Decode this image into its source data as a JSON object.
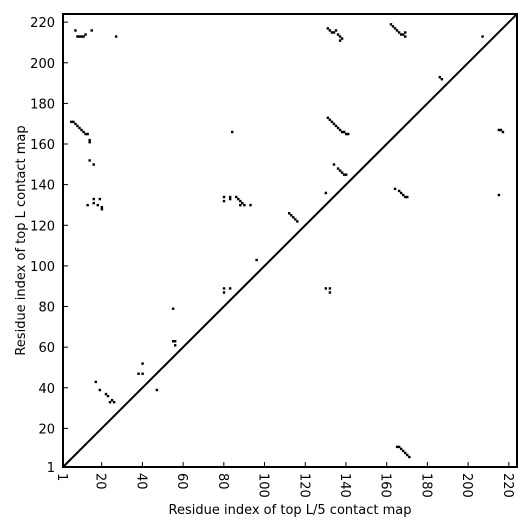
{
  "chart_data": {
    "type": "scatter",
    "subtype": "contact-map",
    "title": "",
    "xlabel": "Residue index of top L/5 contact map",
    "ylabel": "Residue index of top L contact map",
    "xlim": [
      1,
      224
    ],
    "ylim": [
      1,
      224
    ],
    "x_ticks": [
      1,
      20,
      40,
      60,
      80,
      100,
      120,
      140,
      160,
      180,
      200,
      220
    ],
    "y_ticks": [
      1,
      20,
      40,
      60,
      80,
      100,
      120,
      140,
      160,
      180,
      200,
      220
    ],
    "diagonal": true,
    "grid": false,
    "legend": "none",
    "marker_color": "#000000",
    "upper_triangle_top_L5": [
      [
        7,
        216
      ],
      [
        8,
        213
      ],
      [
        9,
        213
      ],
      [
        10,
        213
      ],
      [
        11,
        213
      ],
      [
        12,
        214
      ],
      [
        15,
        216
      ],
      [
        27,
        213
      ],
      [
        131,
        217
      ],
      [
        132,
        216
      ],
      [
        133,
        215
      ],
      [
        134,
        215
      ],
      [
        135,
        216
      ],
      [
        136,
        214
      ],
      [
        137,
        213
      ],
      [
        137,
        211
      ],
      [
        138,
        212
      ],
      [
        162,
        219
      ],
      [
        163,
        218
      ],
      [
        164,
        217
      ],
      [
        165,
        216
      ],
      [
        166,
        215
      ],
      [
        167,
        214
      ],
      [
        168,
        214
      ],
      [
        169,
        213
      ],
      [
        169,
        215
      ],
      [
        186,
        193
      ],
      [
        187,
        192
      ],
      [
        207,
        213
      ]
    ],
    "lower_triangle_top_L": [
      [
        5,
        171
      ],
      [
        6,
        171
      ],
      [
        7,
        170
      ],
      [
        8,
        169
      ],
      [
        9,
        168
      ],
      [
        10,
        167
      ],
      [
        11,
        166
      ],
      [
        12,
        165
      ],
      [
        13,
        165
      ],
      [
        14,
        162
      ],
      [
        14,
        161
      ],
      [
        14,
        152
      ],
      [
        16,
        150
      ],
      [
        13,
        130
      ],
      [
        16,
        131
      ],
      [
        16,
        133
      ],
      [
        18,
        130
      ],
      [
        19,
        133
      ],
      [
        20,
        129
      ],
      [
        20,
        128
      ],
      [
        17,
        43
      ],
      [
        19,
        39
      ],
      [
        22,
        37
      ],
      [
        23,
        36
      ],
      [
        24,
        33
      ],
      [
        25,
        34
      ],
      [
        26,
        33
      ],
      [
        38,
        47
      ],
      [
        40,
        47
      ],
      [
        40,
        52
      ],
      [
        47,
        39
      ],
      [
        55,
        79
      ],
      [
        55,
        63
      ],
      [
        56,
        63
      ],
      [
        56,
        61
      ],
      [
        80,
        134
      ],
      [
        80,
        132
      ],
      [
        83,
        133
      ],
      [
        83,
        134
      ],
      [
        86,
        134
      ],
      [
        87,
        133
      ],
      [
        88,
        132
      ],
      [
        89,
        131
      ],
      [
        90,
        130
      ],
      [
        88,
        130
      ],
      [
        93,
        130
      ],
      [
        80,
        89
      ],
      [
        80,
        87
      ],
      [
        83,
        89
      ],
      [
        96,
        103
      ],
      [
        112,
        126
      ],
      [
        113,
        125
      ],
      [
        114,
        124
      ],
      [
        115,
        123
      ],
      [
        116,
        122
      ],
      [
        130,
        136
      ],
      [
        130,
        89
      ],
      [
        132,
        89
      ],
      [
        132,
        87
      ],
      [
        131,
        173
      ],
      [
        132,
        172
      ],
      [
        133,
        171
      ],
      [
        134,
        170
      ],
      [
        135,
        169
      ],
      [
        136,
        168
      ],
      [
        137,
        167
      ],
      [
        138,
        166
      ],
      [
        139,
        166
      ],
      [
        140,
        165
      ],
      [
        141,
        165
      ],
      [
        84,
        166
      ],
      [
        134,
        150
      ],
      [
        136,
        148
      ],
      [
        137,
        147
      ],
      [
        138,
        146
      ],
      [
        139,
        145
      ],
      [
        140,
        145
      ],
      [
        164,
        138
      ],
      [
        166,
        137
      ],
      [
        167,
        136
      ],
      [
        168,
        135
      ],
      [
        169,
        134
      ],
      [
        170,
        134
      ],
      [
        165,
        11
      ],
      [
        166,
        11
      ],
      [
        167,
        10
      ],
      [
        168,
        9
      ],
      [
        169,
        8
      ],
      [
        170,
        7
      ],
      [
        171,
        6
      ],
      [
        215,
        167
      ],
      [
        216,
        167
      ],
      [
        217,
        166
      ],
      [
        215,
        135
      ]
    ]
  }
}
